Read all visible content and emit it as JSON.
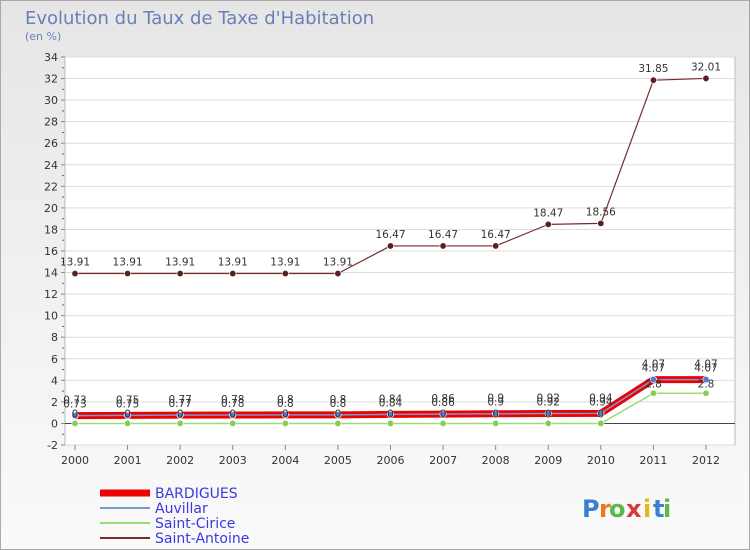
{
  "chart_data": {
    "type": "line",
    "title": "Evolution du Taux de Taxe d'Habitation",
    "subtitle": "(en %)",
    "x": [
      "2000",
      "2001",
      "2002",
      "2003",
      "2004",
      "2005",
      "2006",
      "2007",
      "2008",
      "2009",
      "2010",
      "2011",
      "2012"
    ],
    "ylim": [
      -2,
      34
    ],
    "yticks": [
      -2,
      0,
      2,
      4,
      6,
      8,
      10,
      12,
      14,
      16,
      18,
      20,
      22,
      24,
      26,
      28,
      30,
      32,
      34
    ],
    "grid": true,
    "legend_position": "bottom-left",
    "series": [
      {
        "name": "BARDIGUES",
        "color": "#ee0000",
        "values": [
          0.73,
          0.75,
          0.77,
          0.78,
          0.8,
          0.8,
          0.84,
          0.86,
          0.9,
          0.92,
          0.94,
          4.07,
          4.07
        ],
        "labels": [
          "0.73",
          "0.75",
          "0.77",
          "0.78",
          "0.8",
          "0.8",
          "0.84",
          "0.86",
          "0.9",
          "0.92",
          "0.94",
          "4.07",
          "4.07"
        ]
      },
      {
        "name": "Auvillar",
        "color": "#7799cc",
        "values": [
          0.73,
          0.75,
          0.77,
          0.78,
          0.8,
          0.8,
          0.84,
          0.86,
          0.9,
          0.92,
          0.94,
          4.07,
          4.07
        ],
        "labels": [
          "0.73",
          "0.75",
          "0.77",
          "0.78",
          "0.8",
          "0.8",
          "0.84",
          "0.86",
          "0.9",
          "0.92",
          "0.94",
          "4.07",
          "4.07"
        ]
      },
      {
        "name": "Saint-Cirice",
        "color": "#99dd77",
        "values": [
          0,
          0,
          0,
          0,
          0,
          0,
          0,
          0,
          0,
          0,
          0,
          2.8,
          2.8
        ],
        "labels": [
          "0",
          "0",
          "0",
          "0",
          "0",
          "0",
          "0",
          "0",
          "0",
          "0",
          "0",
          "2.8",
          "2.8"
        ]
      },
      {
        "name": "Saint-Antoine",
        "color": "#7a2a2a",
        "values": [
          13.91,
          13.91,
          13.91,
          13.91,
          13.91,
          13.91,
          16.47,
          16.47,
          16.47,
          18.47,
          18.56,
          31.85,
          32.01
        ],
        "labels": [
          "13.91",
          "13.91",
          "13.91",
          "13.91",
          "13.91",
          "13.91",
          "16.47",
          "16.47",
          "16.47",
          "18.47",
          "18.56",
          "31.85",
          "32.01"
        ]
      }
    ]
  },
  "brand": {
    "name": "Proxiti",
    "letters": [
      "P",
      "r",
      "o",
      "x",
      "i",
      "t",
      "i"
    ]
  }
}
